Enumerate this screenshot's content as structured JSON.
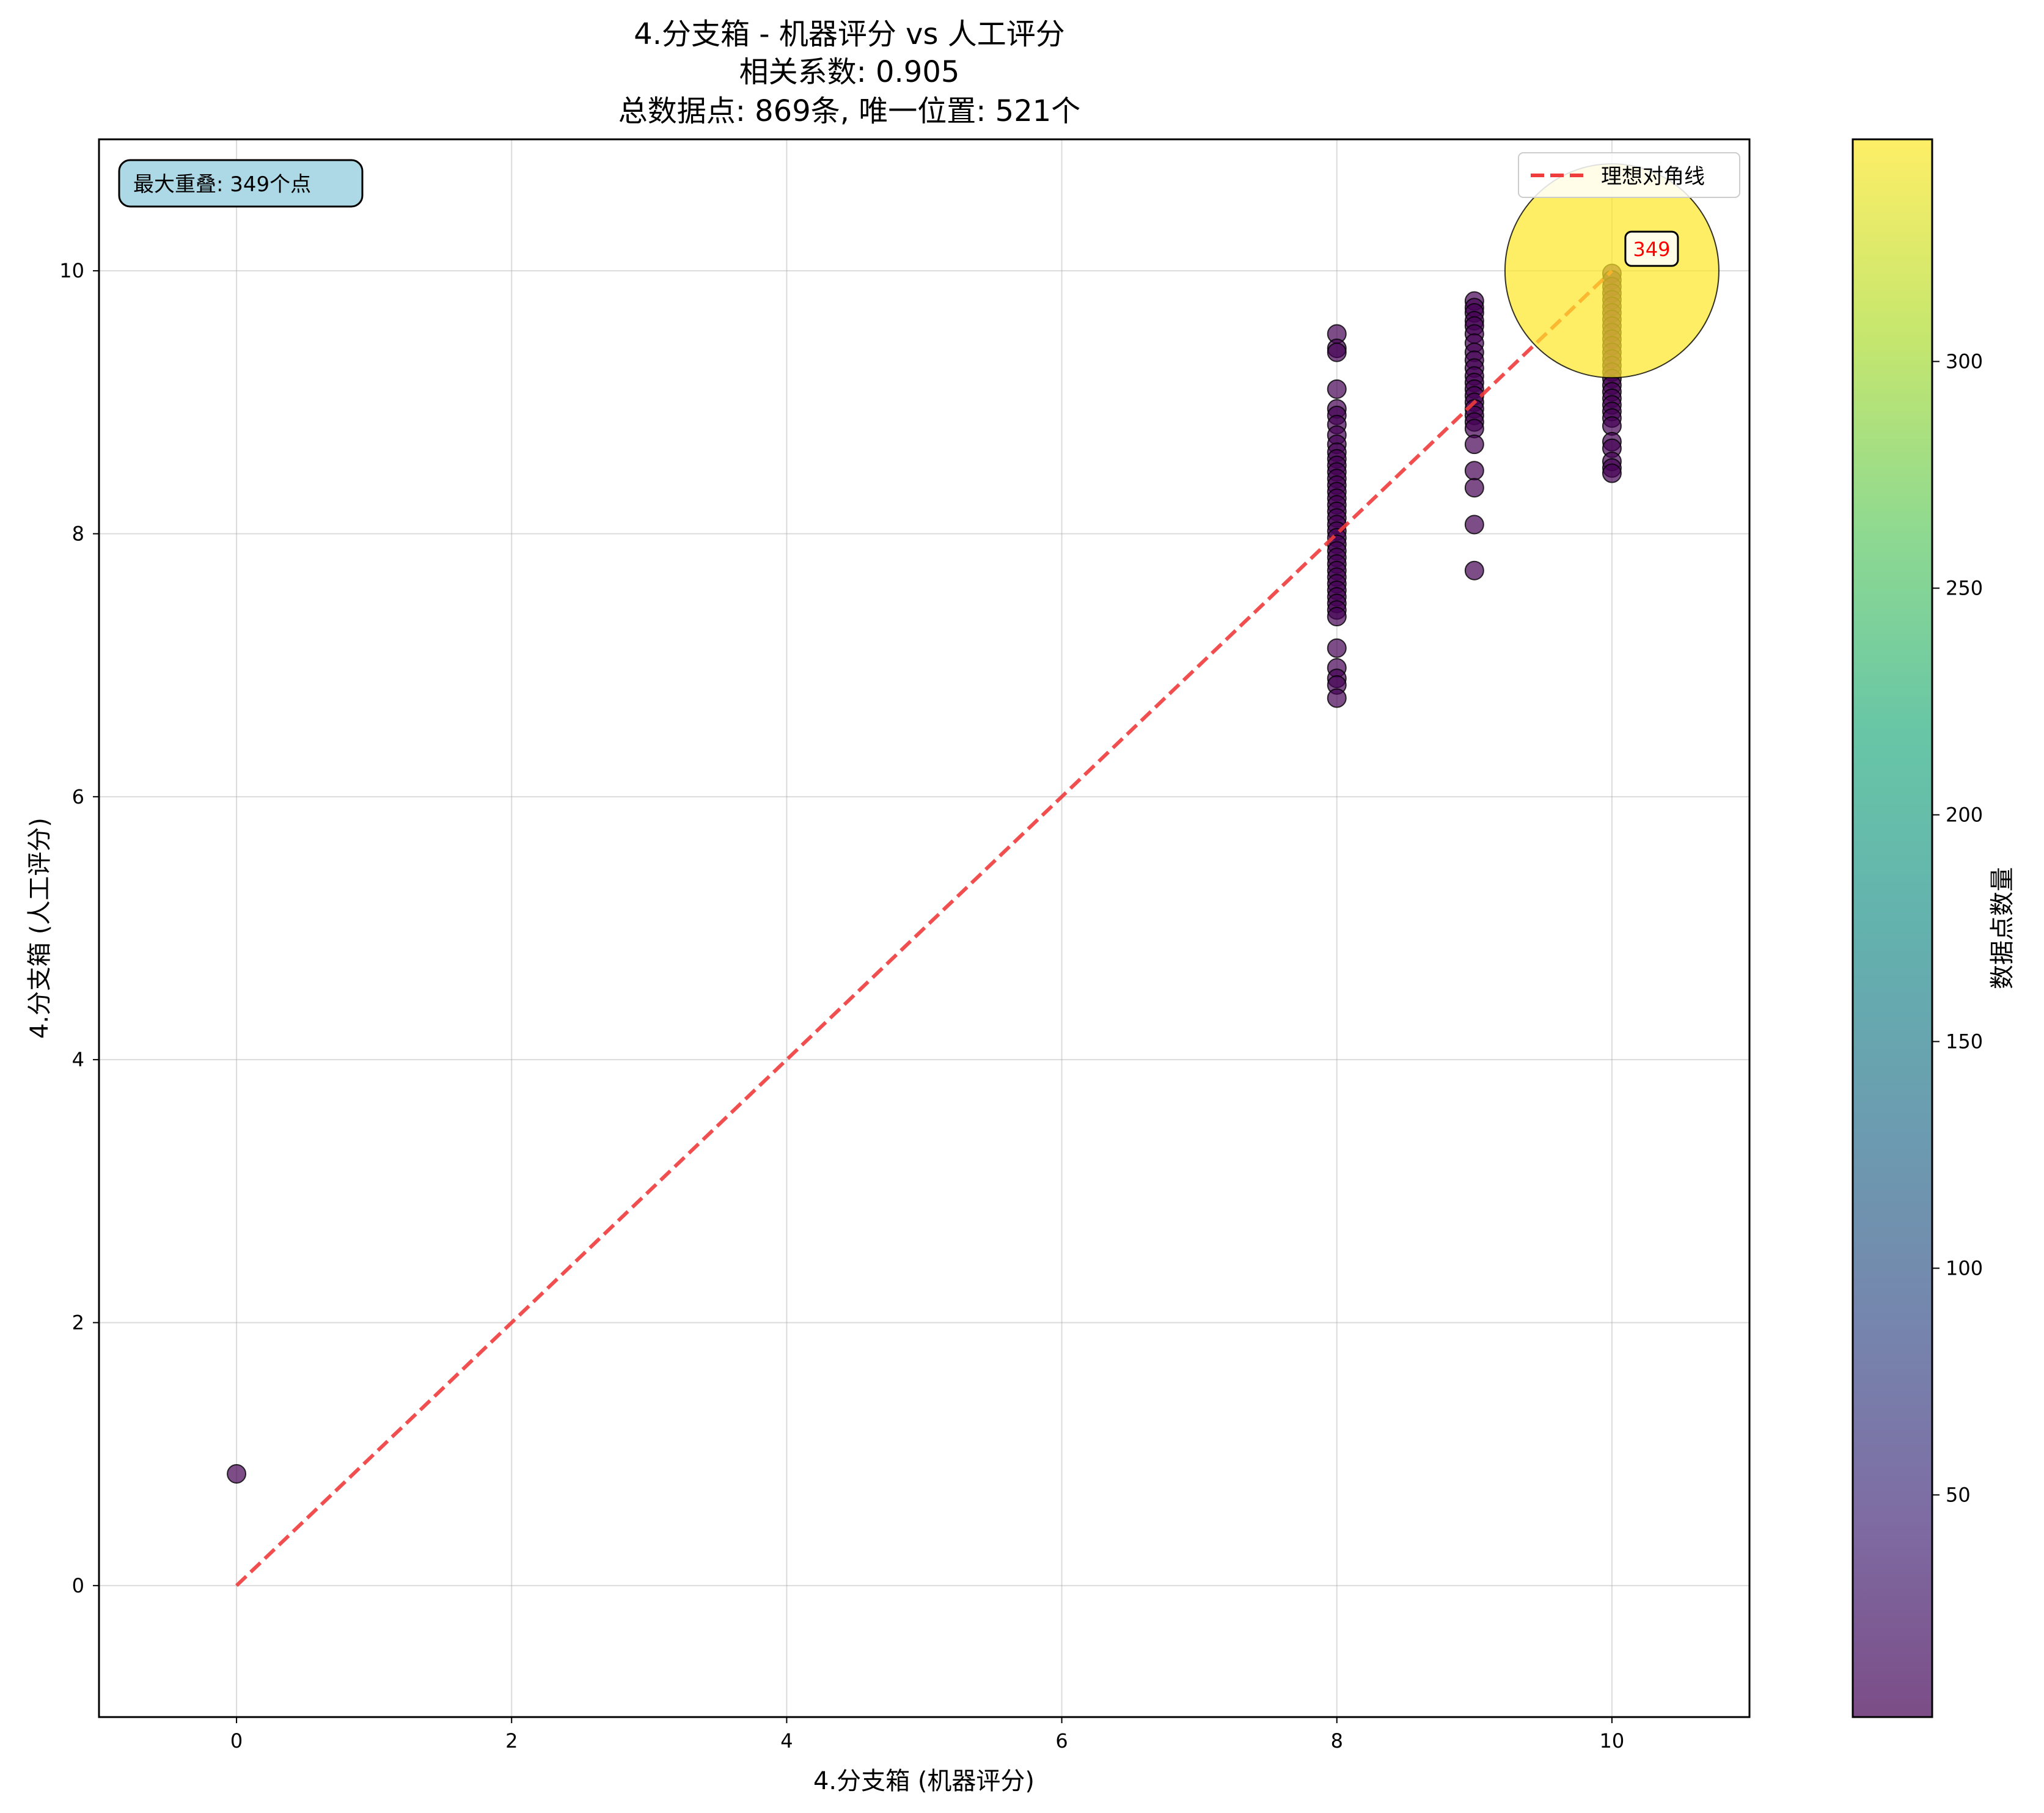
{
  "chart_data": {
    "type": "scatter",
    "title_lines": [
      "4.分支箱 - 机器评分 vs 人工评分",
      "相关系数: 0.905",
      "总数据点: 869条, 唯一位置: 521个"
    ],
    "xlabel": "4.分支箱 (机器评分)",
    "ylabel": "4.分支箱 (人工评分)",
    "xlim": [
      -1,
      11
    ],
    "ylim": [
      -1,
      11
    ],
    "x_ticks": [
      "0",
      "2",
      "4",
      "6",
      "8",
      "10"
    ],
    "y_ticks": [
      "0",
      "2",
      "4",
      "6",
      "8",
      "10"
    ],
    "grid": true,
    "legend": {
      "placement": "top-right",
      "entries": [
        {
          "label": "理想对角线",
          "color": "#f03c3c",
          "style": "dashed"
        }
      ]
    },
    "diagonal": {
      "from": [
        0,
        0
      ],
      "to": [
        10,
        10
      ]
    },
    "max_overlap_note": "最大重叠: 349个点",
    "max_point": {
      "x": 10,
      "y": 10,
      "count": 349,
      "label": "349"
    },
    "colorbar": {
      "label": "数据点数量",
      "ticks": [
        "50",
        "100",
        "150",
        "200",
        "250",
        "300"
      ],
      "min": 1,
      "max": 349,
      "colormap": "viridis"
    },
    "series": [
      {
        "x": 0,
        "y": [
          0.85
        ]
      },
      {
        "x": 8,
        "y": [
          9.52,
          9.41,
          9.38,
          9.1,
          8.95,
          8.9,
          8.83,
          8.75,
          8.68,
          8.62,
          8.57,
          8.52,
          8.47,
          8.42,
          8.37,
          8.32,
          8.27,
          8.22,
          8.17,
          8.12,
          8.07,
          8.02,
          7.97,
          7.92,
          7.87,
          7.82,
          7.77,
          7.72,
          7.67,
          7.62,
          7.57,
          7.52,
          7.47,
          7.42,
          7.37,
          7.13,
          6.98,
          6.9,
          6.85,
          6.75
        ]
      },
      {
        "x": 9,
        "y": [
          9.77,
          9.72,
          9.68,
          9.62,
          9.58,
          9.52,
          9.45,
          9.38,
          9.32,
          9.26,
          9.2,
          9.15,
          9.1,
          9.05,
          9.0,
          8.95,
          8.9,
          8.85,
          8.8,
          8.68,
          8.48,
          8.35,
          8.07,
          7.72
        ]
      },
      {
        "x": 10,
        "y": [
          9.98,
          9.93,
          9.88,
          9.83,
          9.78,
          9.73,
          9.68,
          9.63,
          9.58,
          9.53,
          9.48,
          9.43,
          9.38,
          9.33,
          9.28,
          9.23,
          9.18,
          9.13,
          9.08,
          9.03,
          8.98,
          8.93,
          8.88,
          8.82,
          8.7,
          8.65,
          8.55,
          8.5,
          8.46
        ]
      }
    ]
  }
}
